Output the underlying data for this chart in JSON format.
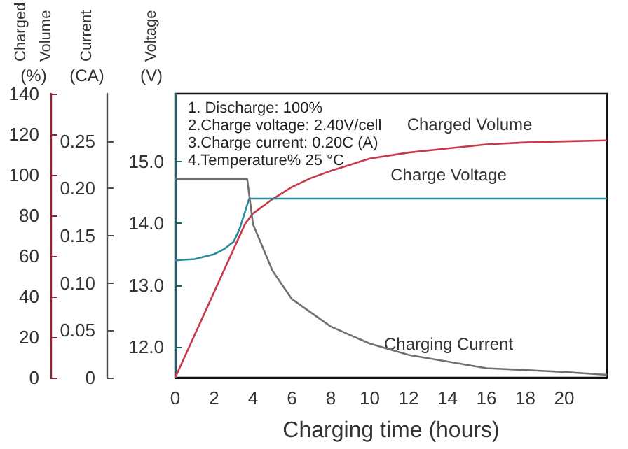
{
  "chart_data": {
    "type": "line",
    "xlabel": "Charging time (hours)",
    "ylabel": "Voltage (V)",
    "y2label": "Current (CA)",
    "y3label": "Charged Volume (%)",
    "annotations": [
      "1. Discharge: 100%",
      "2.Charge voltage: 2.40V/cell",
      "3.Charge current: 0.20C (A)",
      "4.Temperature% 25 °C"
    ],
    "xlim": [
      0,
      22.2
    ],
    "xticks": [
      0,
      2,
      4,
      6,
      8,
      10,
      12,
      14,
      16,
      18,
      20
    ],
    "ylim": [
      11.5,
      16.1
    ],
    "yticks": [
      {
        "value": 12,
        "label": "12.0"
      },
      {
        "value": 13,
        "label": "13.0"
      },
      {
        "value": 14,
        "label": "14.0"
      },
      {
        "value": 15,
        "label": "15.0"
      }
    ],
    "y2lim": [
      0,
      0.3
    ],
    "y2ticks": [
      0,
      0.05,
      {
        "value": 0.1,
        "label": "0.10"
      },
      0.15,
      {
        "value": 0.2,
        "label": "0.20"
      },
      0.25
    ],
    "y3lim": [
      0,
      140
    ],
    "y3ticks": [
      0,
      20,
      40,
      60,
      80,
      100,
      120,
      140
    ],
    "grid": false,
    "legend": false,
    "marker": "none",
    "series": [
      {
        "name": "Charged Volume",
        "color": "#c8394b",
        "axis": "y3",
        "x": [
          0,
          3.6,
          4,
          5,
          6,
          7,
          8,
          10,
          12,
          14,
          16,
          18,
          20,
          22.2
        ],
        "values": [
          0,
          76,
          81,
          88,
          94,
          98.5,
          102,
          108,
          111,
          113,
          115,
          116,
          116.5,
          117
        ]
      },
      {
        "name": "Charge Voltage",
        "color": "#2a8a9a",
        "axis": "y",
        "x": [
          0,
          1,
          2,
          2.5,
          3,
          3.3,
          3.6,
          3.8,
          22.2
        ],
        "values": [
          13.4,
          13.42,
          13.5,
          13.58,
          13.7,
          13.9,
          14.2,
          14.4,
          14.4
        ]
      },
      {
        "name": "Charging Current",
        "color": "#707070",
        "axis": "y2",
        "x": [
          0,
          3.7,
          4,
          5,
          6,
          8,
          10,
          12,
          16,
          20,
          22.2
        ],
        "values": [
          0.21,
          0.21,
          0.162,
          0.113,
          0.083,
          0.054,
          0.036,
          0.024,
          0.01,
          0.006,
          0.003
        ]
      }
    ]
  }
}
